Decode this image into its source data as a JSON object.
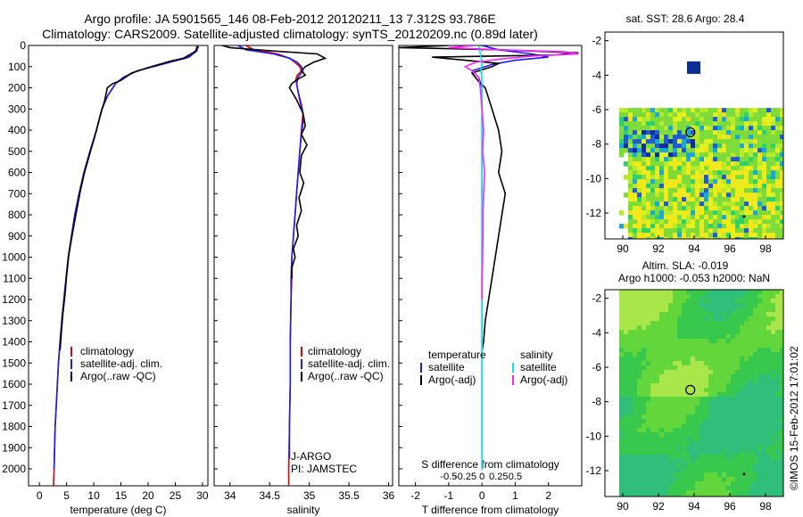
{
  "titles": {
    "line1": "Argo profile: JA 5901565_146 08-Feb-2012 20120211_13 7.312S 93.786E",
    "line2": "Climatology: CARS2009. Satellite-adjusted climatology: synTS_20120209.nc (0.89d later)"
  },
  "side_label": "©IMOS 15-Feb-2012 17:01:02",
  "colors": {
    "climatology": "#e60000",
    "satellite": "#1a1aff",
    "argo": "#000000",
    "sal_satellite": "#00e5ff",
    "sal_argo": "#ff22ff"
  },
  "chart_data": [
    {
      "type": "line",
      "panel": "temperature",
      "xlabel": "temperature (deg C)",
      "ylabel": "",
      "xlim": [
        -2,
        31
      ],
      "ylim": [
        2080,
        0
      ],
      "xticks": [
        0,
        5,
        10,
        15,
        20,
        25,
        30
      ],
      "yticks": [
        0,
        100,
        200,
        300,
        400,
        500,
        600,
        700,
        800,
        900,
        1000,
        1100,
        1200,
        1300,
        1400,
        1500,
        1600,
        1700,
        1800,
        1900,
        2000
      ],
      "legend": {
        "placement": "bottom-center",
        "entries": [
          "climatology",
          "satellite-adj. clim.",
          "Argo(..raw -QC)"
        ]
      },
      "series": [
        {
          "name": "climatology",
          "color_key": "climatology",
          "points": [
            [
              29,
              0
            ],
            [
              28.8,
              25
            ],
            [
              27,
              60
            ],
            [
              22,
              90
            ],
            [
              18,
              120
            ],
            [
              15.5,
              150
            ],
            [
              14,
              180
            ],
            [
              12.5,
              240
            ],
            [
              11.5,
              300
            ],
            [
              10.5,
              400
            ],
            [
              9.3,
              500
            ],
            [
              8.2,
              600
            ],
            [
              7.3,
              700
            ],
            [
              6.5,
              800
            ],
            [
              5.9,
              900
            ],
            [
              5.3,
              1000
            ],
            [
              4.9,
              1100
            ],
            [
              4.5,
              1200
            ],
            [
              4.1,
              1300
            ],
            [
              3.8,
              1400
            ],
            [
              3.5,
              1500
            ],
            [
              3.3,
              1600
            ],
            [
              3.1,
              1700
            ],
            [
              2.9,
              1800
            ],
            [
              2.8,
              1900
            ],
            [
              2.7,
              2000
            ],
            [
              2.6,
              2080
            ]
          ]
        },
        {
          "name": "satellite-adj. clim.",
          "color_key": "satellite",
          "points": [
            [
              29.1,
              0
            ],
            [
              29,
              25
            ],
            [
              27.5,
              55
            ],
            [
              22.5,
              90
            ],
            [
              18,
              120
            ],
            [
              15.5,
              150
            ],
            [
              14,
              180
            ],
            [
              12.5,
              240
            ],
            [
              11.5,
              300
            ],
            [
              10.5,
              400
            ],
            [
              9.3,
              500
            ],
            [
              8.2,
              600
            ],
            [
              7.3,
              700
            ],
            [
              6.5,
              800
            ],
            [
              5.9,
              900
            ],
            [
              5.3,
              1000
            ],
            [
              4.9,
              1100
            ],
            [
              4.5,
              1200
            ],
            [
              4.1,
              1300
            ],
            [
              3.8,
              1400
            ],
            [
              3.5,
              1500
            ],
            [
              3.3,
              1600
            ],
            [
              3.1,
              1700
            ],
            [
              2.9,
              1800
            ],
            [
              2.8,
              1900
            ],
            [
              2.7,
              2000
            ]
          ]
        },
        {
          "name": "Argo(..raw -QC)",
          "color_key": "argo",
          "points": [
            [
              29.3,
              5
            ],
            [
              28.6,
              30
            ],
            [
              26.5,
              60
            ],
            [
              24,
              75
            ],
            [
              20,
              105
            ],
            [
              17,
              130
            ],
            [
              15,
              165
            ],
            [
              13.5,
              180
            ],
            [
              12.5,
              200
            ],
            [
              12,
              260
            ],
            [
              11.2,
              330
            ],
            [
              10.3,
              420
            ],
            [
              9.4,
              500
            ],
            [
              8.3,
              600
            ],
            [
              7.5,
              690
            ],
            [
              6.7,
              800
            ],
            [
              6,
              900
            ],
            [
              5.4,
              990
            ],
            [
              5,
              1090
            ],
            [
              4.7,
              1180
            ],
            [
              4.3,
              1270
            ],
            [
              4,
              1370
            ],
            [
              3.8,
              1440
            ]
          ]
        }
      ]
    },
    {
      "type": "line",
      "panel": "salinity",
      "xlabel": "salinity",
      "ylabel": "",
      "xlim": [
        33.8,
        36.05
      ],
      "ylim": [
        2080,
        0
      ],
      "xticks": [
        34,
        34.5,
        35,
        35.5,
        36
      ],
      "legend": {
        "placement": "bottom-center",
        "entries": [
          "climatology",
          "satellite-adj. clim.",
          "Argo(..raw -QC)"
        ]
      },
      "annotations": [
        "J-ARGO",
        "PI: JAMSTEC"
      ],
      "series": [
        {
          "name": "climatology",
          "color_key": "climatology",
          "points": [
            [
              34.2,
              0
            ],
            [
              34.3,
              20
            ],
            [
              34.6,
              40
            ],
            [
              34.75,
              60
            ],
            [
              34.82,
              80
            ],
            [
              34.88,
              100
            ],
            [
              34.9,
              120
            ],
            [
              34.85,
              140
            ],
            [
              34.83,
              160
            ],
            [
              34.85,
              200
            ],
            [
              34.88,
              260
            ],
            [
              34.92,
              320
            ],
            [
              34.9,
              400
            ],
            [
              34.88,
              500
            ],
            [
              34.86,
              600
            ],
            [
              34.84,
              700
            ],
            [
              34.82,
              800
            ],
            [
              34.8,
              900
            ],
            [
              34.78,
              1000
            ],
            [
              34.78,
              1100
            ],
            [
              34.77,
              1200
            ],
            [
              34.76,
              1400
            ],
            [
              34.76,
              1600
            ],
            [
              34.75,
              1800
            ],
            [
              34.74,
              2000
            ],
            [
              34.74,
              2080
            ]
          ]
        },
        {
          "name": "satellite-adj. clim.",
          "color_key": "satellite",
          "points": [
            [
              34.1,
              0
            ],
            [
              34.2,
              20
            ],
            [
              34.55,
              40
            ],
            [
              34.75,
              60
            ],
            [
              34.85,
              80
            ],
            [
              34.9,
              100
            ],
            [
              34.92,
              120
            ],
            [
              34.86,
              150
            ],
            [
              34.84,
              180
            ],
            [
              34.86,
              220
            ],
            [
              34.9,
              280
            ],
            [
              34.93,
              340
            ],
            [
              34.9,
              420
            ],
            [
              34.88,
              500
            ],
            [
              34.86,
              600
            ],
            [
              34.84,
              700
            ],
            [
              34.82,
              800
            ],
            [
              34.8,
              900
            ],
            [
              34.78,
              1000
            ],
            [
              34.77,
              1100
            ],
            [
              34.77,
              1200
            ],
            [
              34.76,
              1400
            ],
            [
              34.76,
              1600
            ],
            [
              34.75,
              1800
            ],
            [
              34.75,
              1950
            ]
          ]
        },
        {
          "name": "Argo(..raw -QC)",
          "color_key": "argo",
          "points": [
            [
              33.9,
              0
            ],
            [
              34.0,
              10
            ],
            [
              34.5,
              25
            ],
            [
              35.1,
              40
            ],
            [
              35.2,
              60
            ],
            [
              35.05,
              80
            ],
            [
              34.95,
              100
            ],
            [
              34.9,
              120
            ],
            [
              34.95,
              140
            ],
            [
              34.85,
              160
            ],
            [
              34.78,
              180
            ],
            [
              34.75,
              200
            ],
            [
              34.83,
              250
            ],
            [
              34.92,
              320
            ],
            [
              34.95,
              380
            ],
            [
              34.9,
              420
            ],
            [
              34.97,
              470
            ],
            [
              34.9,
              520
            ],
            [
              34.88,
              600
            ],
            [
              34.93,
              650
            ],
            [
              34.87,
              720
            ],
            [
              34.9,
              780
            ],
            [
              34.84,
              850
            ],
            [
              34.86,
              900
            ],
            [
              34.8,
              960
            ],
            [
              34.82,
              1000
            ],
            [
              34.78,
              1050
            ],
            [
              34.78,
              1100
            ]
          ]
        }
      ]
    },
    {
      "type": "line",
      "panel": "difference",
      "xlabel": "T difference from climatology",
      "xlabel_top": "S difference from climatology",
      "xlim": [
        -2.5,
        3
      ],
      "ylim": [
        2080,
        0
      ],
      "xticks": [
        -2,
        -1,
        0,
        1,
        2
      ],
      "xticks_top": [
        -0.5,
        -0.25,
        0,
        0.25,
        0.5
      ],
      "legend": {
        "placement": "bottom",
        "headers": [
          "temperature",
          "salinity"
        ],
        "entries": [
          "satellite",
          "Argo(-adj)",
          "satellite",
          "Argo(-adj)"
        ]
      },
      "series": [
        {
          "name": "T satellite",
          "color_key": "satellite",
          "points": [
            [
              0,
              0
            ],
            [
              0.5,
              20
            ],
            [
              1.5,
              40
            ],
            [
              2,
              55
            ],
            [
              1,
              70
            ],
            [
              0.3,
              90
            ],
            [
              -0.3,
              120
            ],
            [
              -0.1,
              150
            ],
            [
              0,
              200
            ],
            [
              0,
              400
            ],
            [
              0,
              800
            ],
            [
              0,
              1200
            ],
            [
              0,
              1600
            ],
            [
              0,
              2000
            ]
          ]
        },
        {
          "name": "T Argo(-adj)",
          "color_key": "argo",
          "points": [
            [
              -1,
              0
            ],
            [
              -2.5,
              10
            ],
            [
              0.5,
              20
            ],
            [
              2.9,
              35
            ],
            [
              2.2,
              45
            ],
            [
              -1.5,
              55
            ],
            [
              -0.5,
              70
            ],
            [
              0.5,
              85
            ],
            [
              0.3,
              100
            ],
            [
              -0.3,
              130
            ],
            [
              -0.1,
              170
            ],
            [
              0.1,
              200
            ],
            [
              0.3,
              300
            ],
            [
              0.5,
              400
            ],
            [
              0.6,
              500
            ],
            [
              0.5,
              600
            ],
            [
              0.7,
              700
            ],
            [
              0.6,
              800
            ],
            [
              0.5,
              900
            ],
            [
              0.4,
              1000
            ],
            [
              0.3,
              1100
            ],
            [
              0.2,
              1200
            ],
            [
              0.1,
              1300
            ],
            [
              0.05,
              1400
            ],
            [
              0,
              1440
            ]
          ]
        },
        {
          "name": "S satellite",
          "color_key": "sal_satellite",
          "points": [
            [
              -0.1,
              0
            ],
            [
              -0.05,
              40
            ],
            [
              0,
              80
            ],
            [
              -0.03,
              120
            ],
            [
              0,
              160
            ],
            [
              0,
              400
            ],
            [
              0,
              800
            ],
            [
              0,
              1200
            ],
            [
              0,
              1600
            ],
            [
              0,
              2000
            ]
          ]
        },
        {
          "name": "S Argo(-adj)",
          "color_key": "sal_argo",
          "points": [
            [
              -0.2,
              0
            ],
            [
              -1,
              10
            ],
            [
              0.5,
              20
            ],
            [
              2.5,
              30
            ],
            [
              2.9,
              40
            ],
            [
              1.5,
              50
            ],
            [
              0.5,
              65
            ],
            [
              -0.2,
              80
            ],
            [
              -0.5,
              100
            ],
            [
              -0.3,
              120
            ],
            [
              -0.1,
              150
            ],
            [
              -0.05,
              200
            ],
            [
              0,
              300
            ],
            [
              0.05,
              400
            ],
            [
              0.02,
              500
            ],
            [
              0.08,
              600
            ],
            [
              0.05,
              700
            ],
            [
              0.03,
              800
            ],
            [
              0.03,
              900
            ],
            [
              0.02,
              1000
            ],
            [
              0,
              1100
            ],
            [
              0,
              1200
            ]
          ]
        }
      ]
    },
    {
      "type": "heatmap",
      "panel": "sst-map",
      "title": "sat. SST: 28.6  Argo: 28.4",
      "xlim": [
        89,
        99
      ],
      "ylim": [
        -13.5,
        -1.5
      ],
      "xticks": [
        90,
        92,
        94,
        96,
        98
      ],
      "yticks": [
        -2,
        -4,
        -6,
        -8,
        -10,
        -12
      ],
      "argo_position": [
        93.786,
        -7.312
      ]
    },
    {
      "type": "heatmap",
      "panel": "sla-map",
      "title": "Altim. SLA: -0.019",
      "subtitle": "Argo h1000: -0.053  h2000: NaN",
      "xlim": [
        89,
        99
      ],
      "ylim": [
        -13.5,
        -1.5
      ],
      "xticks": [
        90,
        92,
        94,
        96,
        98
      ],
      "yticks": [
        -2,
        -4,
        -6,
        -8,
        -10,
        -12
      ],
      "argo_position": [
        93.786,
        -7.312
      ]
    }
  ]
}
